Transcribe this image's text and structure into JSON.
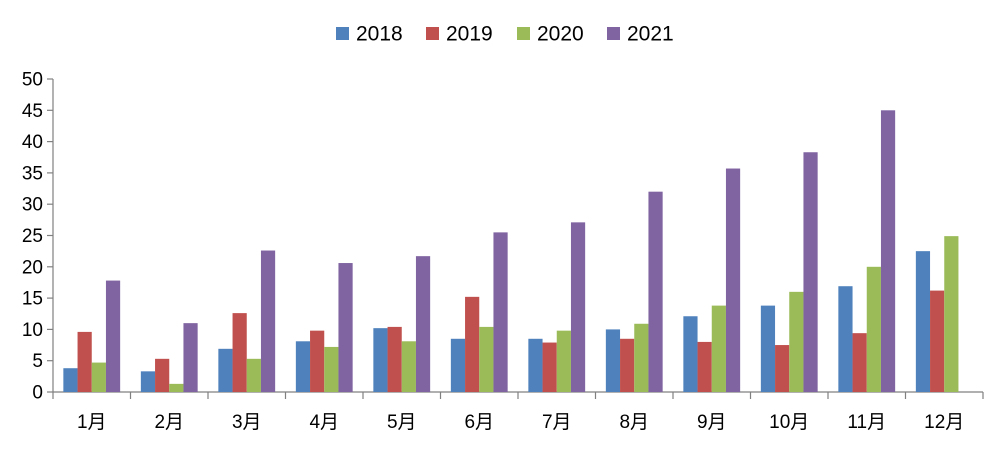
{
  "chart_data": {
    "type": "bar",
    "title": "",
    "xlabel": "",
    "ylabel": "",
    "categories": [
      "1月",
      "2月",
      "3月",
      "4月",
      "5月",
      "6月",
      "7月",
      "8月",
      "9月",
      "10月",
      "11月",
      "12月"
    ],
    "series": [
      {
        "name": "2018",
        "color": "#4F81BD",
        "values": [
          3.8,
          3.3,
          6.9,
          8.1,
          10.2,
          8.5,
          8.5,
          10.0,
          12.1,
          13.8,
          16.9,
          22.5
        ]
      },
      {
        "name": "2019",
        "color": "#C0504D",
        "values": [
          9.6,
          5.3,
          12.6,
          9.8,
          10.4,
          15.2,
          7.9,
          8.5,
          8.0,
          7.5,
          9.4,
          16.2
        ]
      },
      {
        "name": "2020",
        "color": "#9BBB59",
        "values": [
          4.7,
          1.3,
          5.3,
          7.2,
          8.1,
          10.4,
          9.8,
          10.9,
          13.8,
          16.0,
          20.0,
          24.9
        ]
      },
      {
        "name": "2021",
        "color": "#8064A2",
        "values": [
          17.8,
          11.0,
          22.6,
          20.6,
          21.7,
          25.5,
          27.1,
          32.0,
          35.7,
          38.3,
          45.0,
          null
        ]
      }
    ],
    "ylim": [
      0,
      50
    ],
    "yticks": [
      0,
      5,
      10,
      15,
      20,
      25,
      30,
      35,
      40,
      45,
      50
    ],
    "grid": false,
    "legend": "top-center"
  }
}
